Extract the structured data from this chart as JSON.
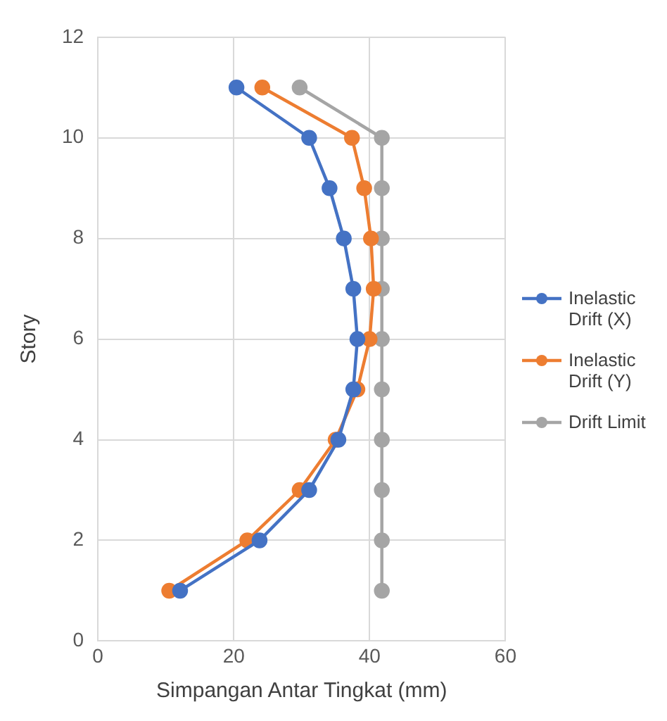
{
  "chart_data": {
    "type": "line",
    "xlabel": "Simpangan Antar Tingkat (mm)",
    "ylabel": "Story",
    "xlim": [
      0,
      60
    ],
    "xticks": [
      0,
      20,
      40,
      60
    ],
    "ylim": [
      0,
      12
    ],
    "yticks": [
      0,
      2,
      4,
      6,
      8,
      10,
      12
    ],
    "grid": true,
    "legend": "right",
    "marker": "circle",
    "line_style": "solid",
    "series": [
      {
        "name": "Inelastic Drift (X)",
        "color": "#4472c4",
        "x": [
          12.1,
          23.8,
          31.1,
          35.4,
          37.6,
          38.2,
          37.6,
          36.2,
          34.1,
          31.1,
          20.4
        ],
        "values": [
          1,
          2,
          3,
          4,
          5,
          6,
          7,
          8,
          9,
          10,
          11
        ]
      },
      {
        "name": "Inelastic Drift (Y)",
        "color": "#ed7d31",
        "x": [
          10.5,
          22.0,
          29.7,
          35.0,
          38.2,
          40.0,
          40.6,
          40.2,
          39.2,
          37.4,
          24.2
        ],
        "values": [
          1,
          2,
          3,
          4,
          5,
          6,
          7,
          8,
          9,
          10,
          11
        ]
      },
      {
        "name": "Drift Limit",
        "color": "#a5a5a5",
        "x": [
          41.8,
          41.8,
          41.8,
          41.8,
          41.8,
          41.8,
          41.8,
          41.8,
          41.8,
          41.8,
          29.7
        ],
        "values": [
          1,
          2,
          3,
          4,
          5,
          6,
          7,
          8,
          9,
          10,
          11
        ]
      }
    ]
  }
}
